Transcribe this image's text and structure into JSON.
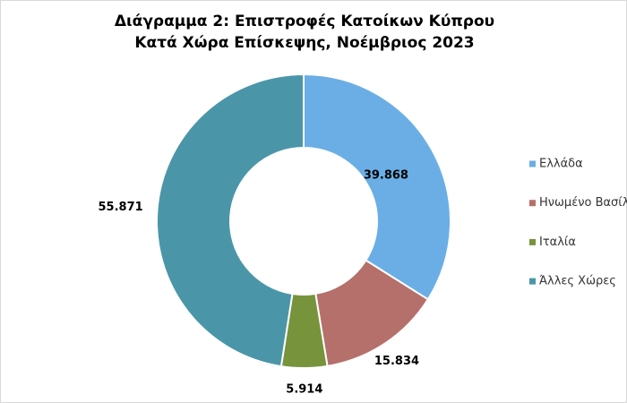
{
  "chart_data": {
    "type": "doughnut",
    "title": [
      "Διάγραμμα 2: Επιστροφές Κατοίκων Κύπρου",
      "Κατά Χώρα Επίσκεψης, Νοέμβριος 2023"
    ],
    "categories": [
      "Ελλάδα",
      "Ηνωμένο Βασίλειο",
      "Ιταλία",
      "Άλλες Χώρες"
    ],
    "values": [
      39868,
      15834,
      5914,
      55871
    ],
    "value_labels": [
      "39.868",
      "15.834",
      "5.914",
      "55.871"
    ],
    "colors": [
      "#6aaee5",
      "#b5706c",
      "#77933c",
      "#4a96a8"
    ],
    "legend": "right"
  }
}
